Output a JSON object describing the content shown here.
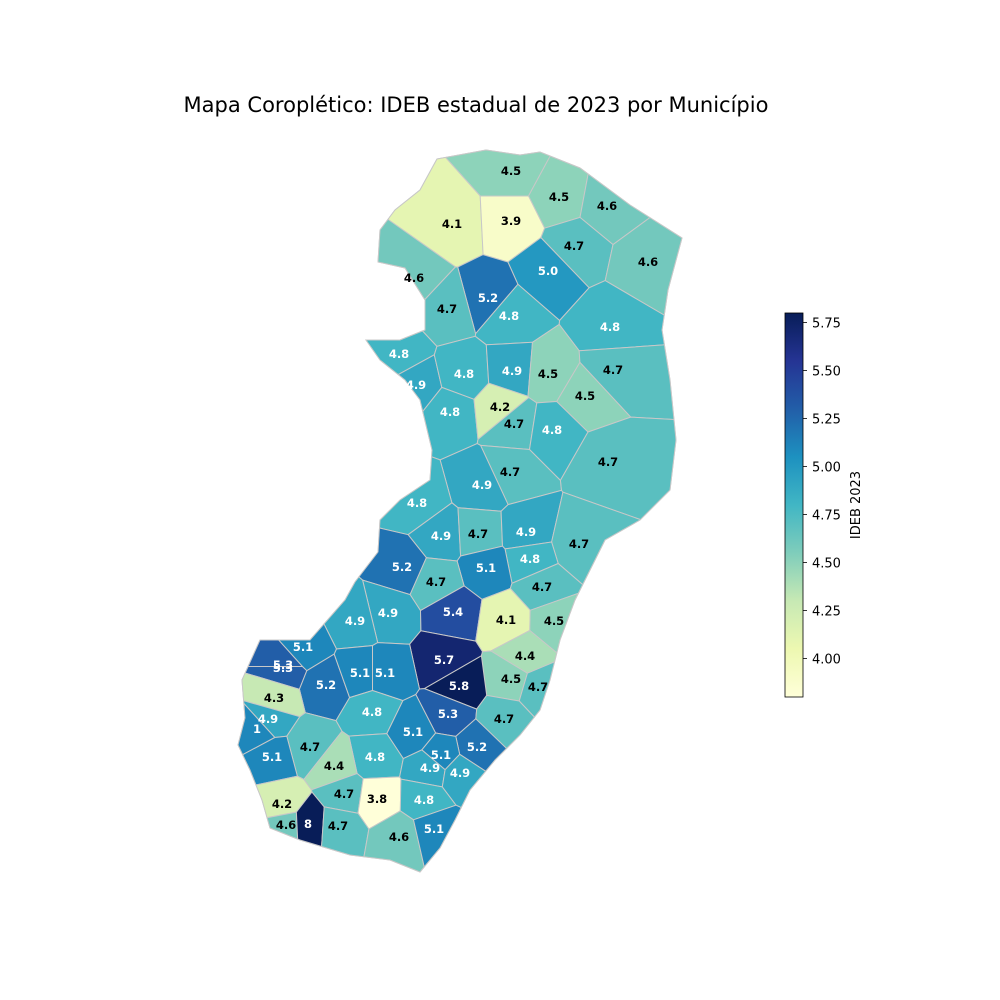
{
  "title": "Mapa Coroplético: IDEB estadual de 2023 por Município",
  "colorbar": {
    "label": "IDEB 2023",
    "min": 3.8,
    "max": 5.8,
    "ticks": [
      "4.00",
      "4.25",
      "4.50",
      "4.75",
      "5.00",
      "5.25",
      "5.50",
      "5.75"
    ],
    "tick_values": [
      4.0,
      4.25,
      4.5,
      4.75,
      5.0,
      5.25,
      5.5,
      5.75
    ],
    "colormap": "YlGnBu",
    "stops": [
      "#ffffd9",
      "#edf8b1",
      "#c7e9b4",
      "#7fcdbb",
      "#41b6c4",
      "#1d91c0",
      "#225ea8",
      "#253494",
      "#081d58"
    ]
  },
  "chart_data": {
    "type": "choropleth",
    "title": "Mapa Coroplético: IDEB estadual de 2023 por Município",
    "colorbar_label": "IDEB 2023",
    "range": [
      3.8,
      5.8
    ],
    "labels": [
      "4.5",
      "4.5",
      "4.6",
      "4.1",
      "3.9",
      "4.7",
      "4.6",
      "5.0",
      "4.6",
      "5.2",
      "4.7",
      "4.8",
      "4.8",
      "4.8",
      "4.9",
      "4.8",
      "4.9",
      "4.5",
      "4.7",
      "4.5",
      "4.8",
      "4.2",
      "4.7",
      "4.8",
      "4.7",
      "4.7",
      "4.9",
      "4.8",
      "4.9",
      "4.7",
      "4.9",
      "4.7",
      "4.8",
      "5.2",
      "5.1",
      "4.7",
      "4.7",
      "5.4",
      "4.9",
      "4.9",
      "4.1",
      "4.5",
      "5.1",
      "5.3",
      "5.3",
      "4.4",
      "5.7",
      "5.2",
      "5.1",
      "5.1",
      "4.3",
      "4.5",
      "5.8",
      "4.7",
      "4.8",
      "4.9",
      "5.3",
      "1",
      "4.7",
      "5.1",
      "4.7",
      "5.2",
      "5.1",
      "4.8",
      "5.1",
      "4.4",
      "4.9",
      "4.9",
      "4.7",
      "3.8",
      "4.2",
      "4.8",
      "4.6",
      "8",
      "4.7",
      "4.6",
      "5.1"
    ]
  }
}
